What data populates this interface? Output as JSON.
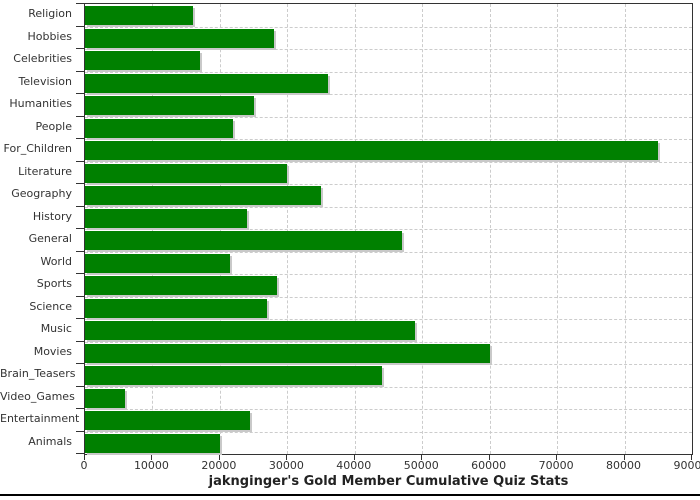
{
  "chart_data": {
    "type": "bar",
    "orientation": "horizontal",
    "title": "jaknginger's Gold Member Cumulative Quiz Stats",
    "categories": [
      "Religion",
      "Hobbies",
      "Celebrities",
      "Television",
      "Humanities",
      "People",
      "For_Children",
      "Literature",
      "Geography",
      "History",
      "General",
      "World",
      "Sports",
      "Science",
      "Music",
      "Movies",
      "Brain_Teasers",
      "Video_Games",
      "Entertainment",
      "Animals"
    ],
    "values": [
      16000,
      28000,
      17000,
      36000,
      25000,
      22000,
      85000,
      30000,
      35000,
      24000,
      47000,
      21500,
      28500,
      27000,
      49000,
      60000,
      44000,
      6000,
      24500,
      20000
    ],
    "xlabel": "",
    "ylabel": "",
    "xlim": [
      0,
      90000
    ],
    "x_ticks": [
      0,
      10000,
      20000,
      30000,
      40000,
      50000,
      60000,
      70000,
      80000,
      90000
    ],
    "grid": true,
    "legend": false
  },
  "colors": {
    "bar": "#008000",
    "bar_shadow": "#c9c9c9",
    "grid": "#cccccc",
    "axis": "#333333",
    "tick_text": "#333333",
    "title_text": "#222222",
    "bottom_rule": "#000000",
    "background": "#ffffff"
  }
}
